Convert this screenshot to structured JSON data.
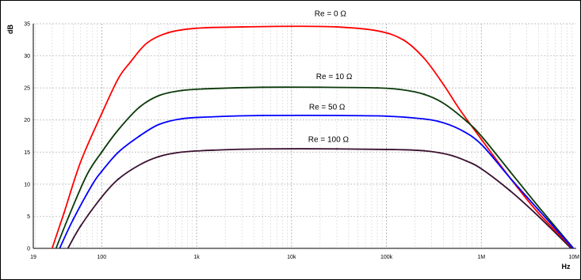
{
  "chart_data": {
    "type": "line",
    "xscale": "log",
    "xlim": [
      19,
      10000000
    ],
    "ylim": [
      0,
      35
    ],
    "grid": true,
    "ylabel": "dB",
    "xlabel": "Hz",
    "x_ticks": [
      {
        "value": 19,
        "label": "19"
      },
      {
        "value": 100,
        "label": "100"
      },
      {
        "value": 1000,
        "label": "1k"
      },
      {
        "value": 10000,
        "label": "10k"
      },
      {
        "value": 100000,
        "label": "100k"
      },
      {
        "value": 1000000,
        "label": "1M"
      },
      {
        "value": 10000000,
        "label": "10M"
      }
    ],
    "y_ticks": [
      {
        "value": 0,
        "label": "0"
      },
      {
        "value": 5,
        "label": "5"
      },
      {
        "value": 10,
        "label": "10"
      },
      {
        "value": 15,
        "label": "15"
      },
      {
        "value": 20,
        "label": "20"
      },
      {
        "value": 25,
        "label": "25"
      },
      {
        "value": 30,
        "label": "30"
      },
      {
        "value": 35,
        "label": "35"
      }
    ],
    "series": [
      {
        "name": "Re = 0 Ω",
        "color": "#ff0000",
        "label_at": [
          22000,
          36.2
        ],
        "points": [
          [
            30,
            0
          ],
          [
            40,
            5.5
          ],
          [
            60,
            13.5
          ],
          [
            100,
            21
          ],
          [
            150,
            26.5
          ],
          [
            200,
            29
          ],
          [
            300,
            32
          ],
          [
            500,
            33.6
          ],
          [
            1000,
            34.3
          ],
          [
            3000,
            34.5
          ],
          [
            10000,
            34.6
          ],
          [
            30000,
            34.5
          ],
          [
            80000,
            33.9
          ],
          [
            150000,
            32.5
          ],
          [
            250000,
            29.6
          ],
          [
            400000,
            25.5
          ],
          [
            600000,
            21.5
          ],
          [
            1000000,
            17
          ],
          [
            2000000,
            11
          ],
          [
            4000000,
            5.5
          ],
          [
            10000000,
            -0.5
          ]
        ]
      },
      {
        "name": "Re = 10 Ω",
        "color": "#0a3a0a",
        "label_at": [
          22000,
          26.4
        ],
        "points": [
          [
            33,
            0
          ],
          [
            45,
            5
          ],
          [
            70,
            11.5
          ],
          [
            100,
            15
          ],
          [
            150,
            18.5
          ],
          [
            250,
            22
          ],
          [
            400,
            23.8
          ],
          [
            700,
            24.6
          ],
          [
            1500,
            24.9
          ],
          [
            5000,
            25.1
          ],
          [
            20000,
            25.1
          ],
          [
            80000,
            25
          ],
          [
            150000,
            24.7
          ],
          [
            250000,
            24
          ],
          [
            400000,
            22.6
          ],
          [
            700000,
            19.8
          ],
          [
            1000000,
            17.5
          ],
          [
            2000000,
            12
          ],
          [
            4000000,
            6.5
          ],
          [
            10000000,
            -0.5
          ]
        ]
      },
      {
        "name": "Re = 50 Ω",
        "color": "#0000ff",
        "label_at": [
          20000,
          21.6
        ],
        "points": [
          [
            36,
            0
          ],
          [
            50,
            4.5
          ],
          [
            80,
            10
          ],
          [
            100,
            12
          ],
          [
            150,
            15
          ],
          [
            250,
            17.5
          ],
          [
            400,
            19.3
          ],
          [
            700,
            20.2
          ],
          [
            1500,
            20.5
          ],
          [
            5000,
            20.7
          ],
          [
            30000,
            20.7
          ],
          [
            100000,
            20.6
          ],
          [
            200000,
            20.3
          ],
          [
            350000,
            19.8
          ],
          [
            600000,
            18.5
          ],
          [
            1000000,
            16.2
          ],
          [
            2000000,
            11
          ],
          [
            4000000,
            6
          ],
          [
            10000000,
            -0.5
          ]
        ]
      },
      {
        "name": "Re = 100 Ω",
        "color": "#3a1030",
        "label_at": [
          22000,
          16.6
        ],
        "points": [
          [
            44,
            0
          ],
          [
            60,
            3.5
          ],
          [
            100,
            8
          ],
          [
            150,
            10.8
          ],
          [
            250,
            13
          ],
          [
            400,
            14.3
          ],
          [
            700,
            15
          ],
          [
            1500,
            15.3
          ],
          [
            5000,
            15.5
          ],
          [
            30000,
            15.5
          ],
          [
            120000,
            15.4
          ],
          [
            250000,
            15.2
          ],
          [
            450000,
            14.6
          ],
          [
            700000,
            13.6
          ],
          [
            1000000,
            12.4
          ],
          [
            2000000,
            9
          ],
          [
            4000000,
            5
          ],
          [
            10000000,
            -0.8
          ]
        ]
      }
    ]
  }
}
